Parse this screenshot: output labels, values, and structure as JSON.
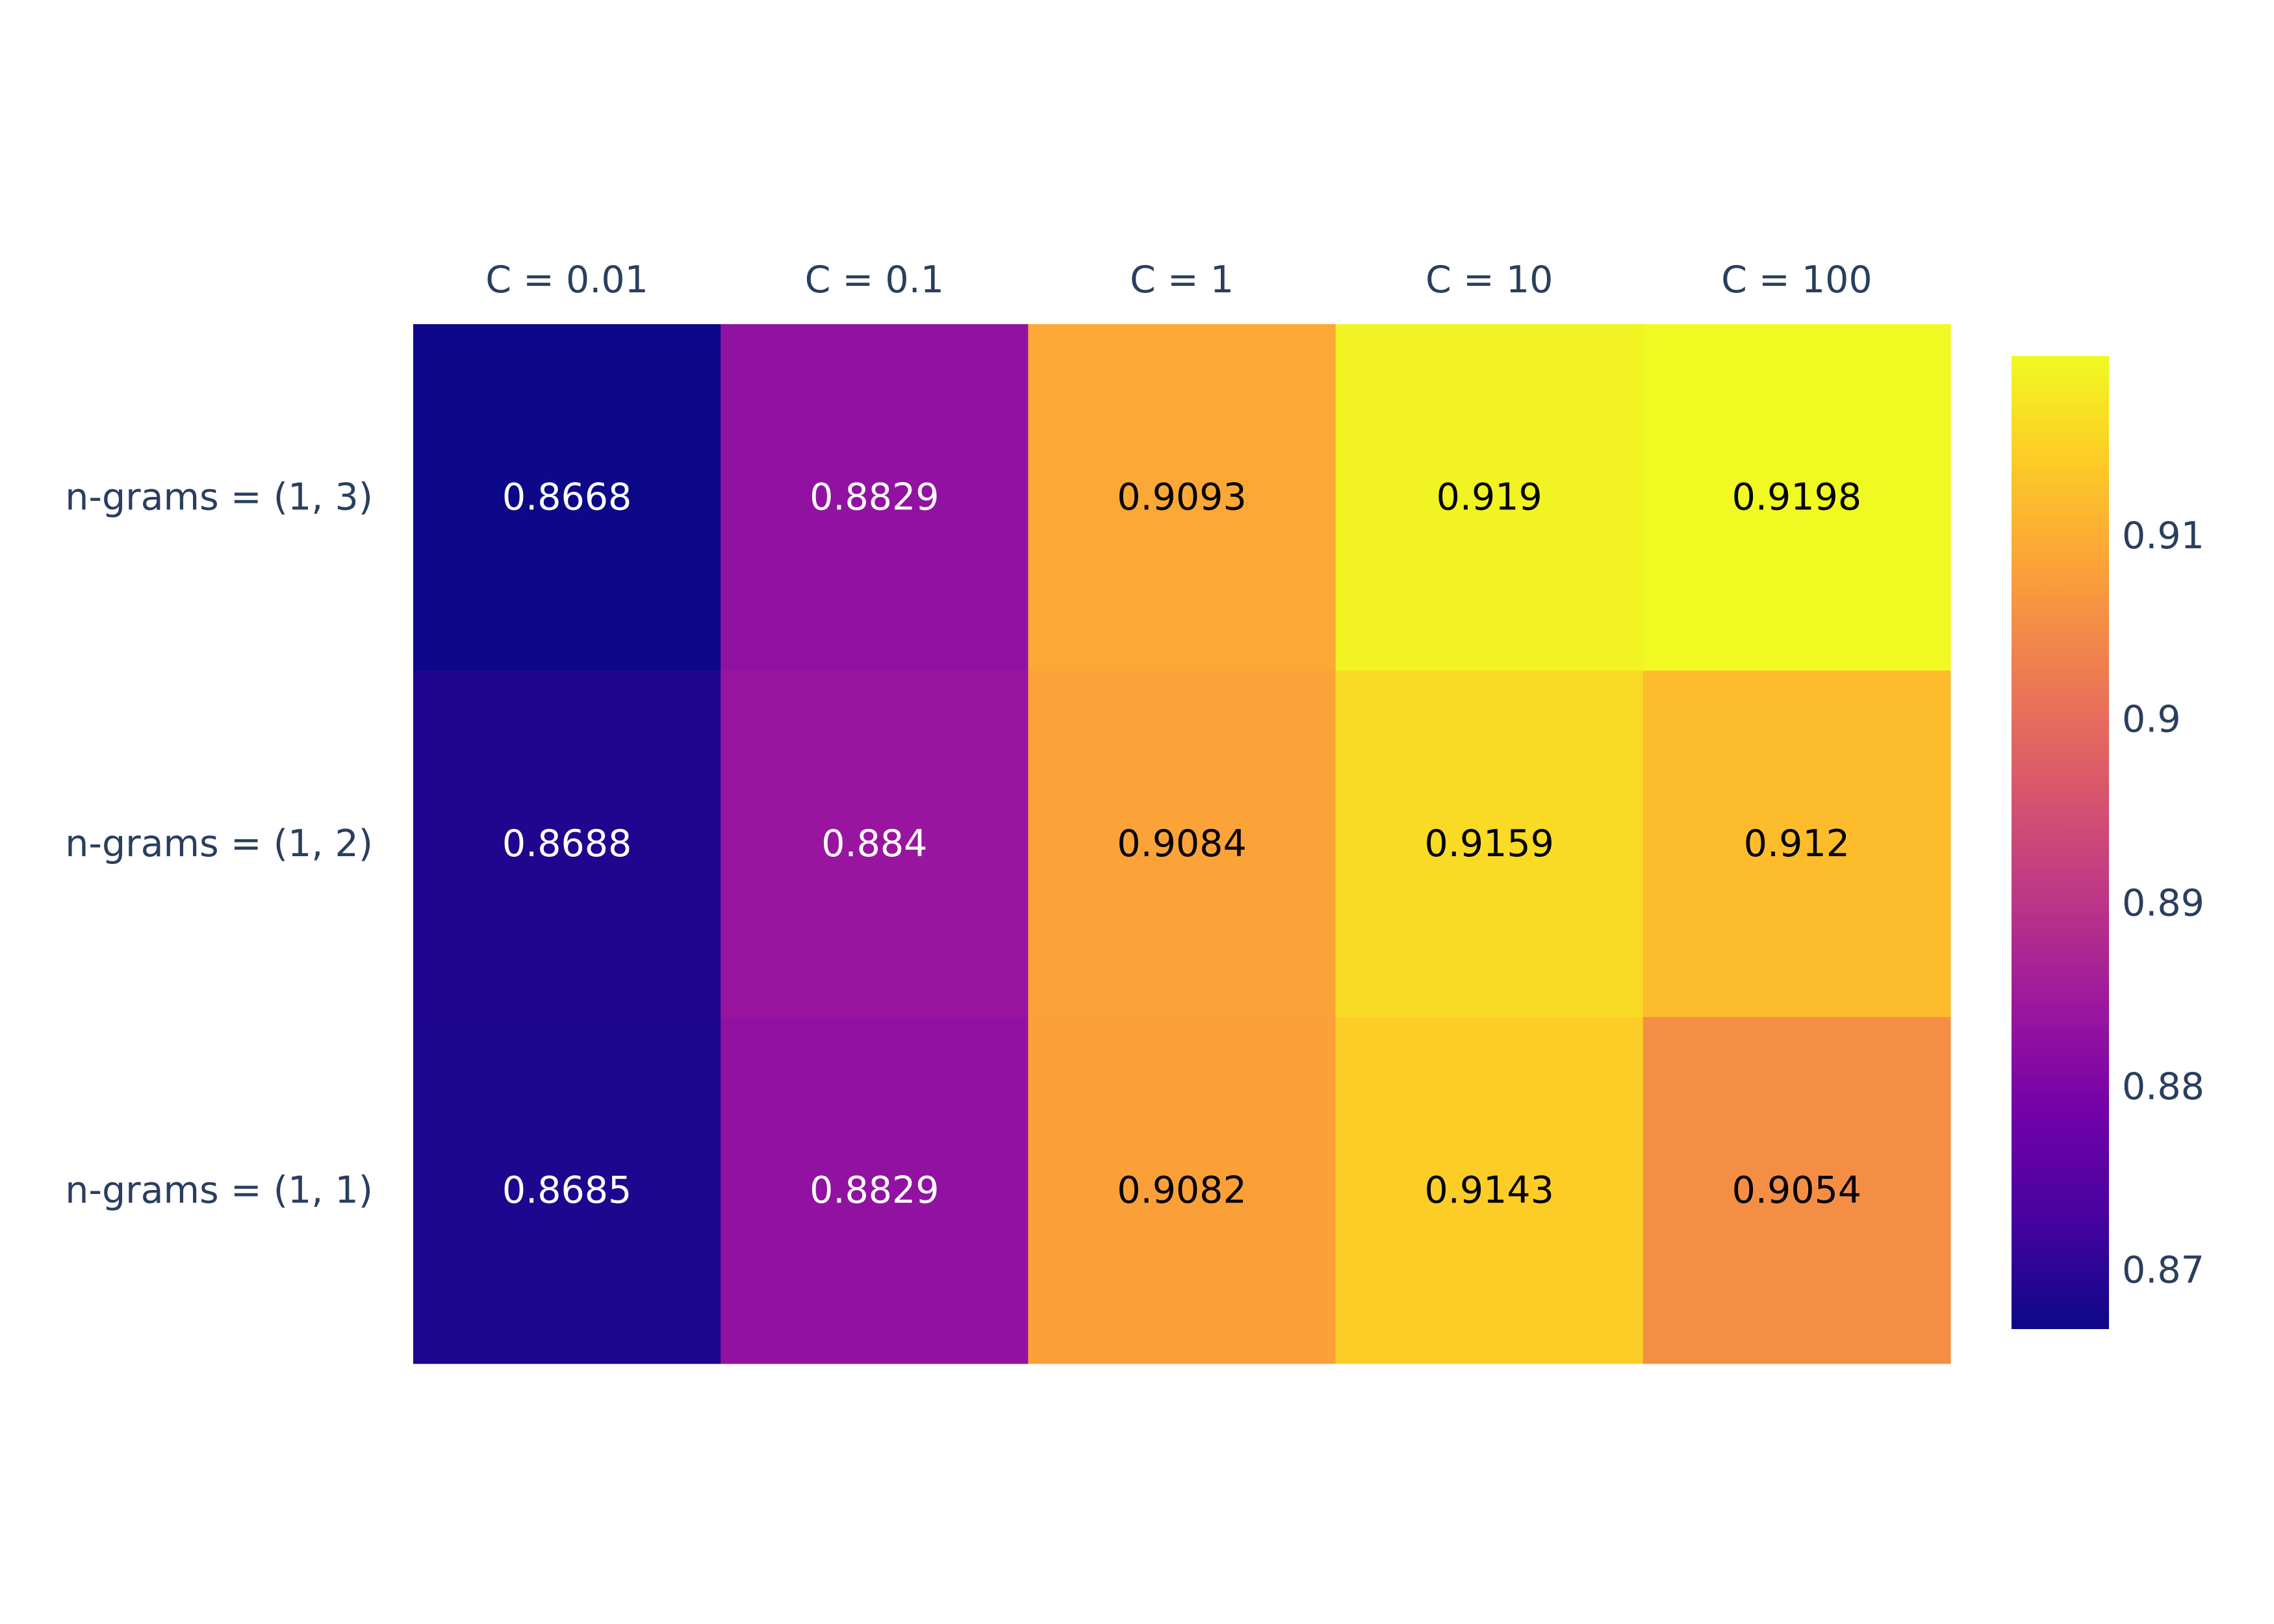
{
  "chart_data": {
    "type": "heatmap",
    "title": "",
    "xlabel": "",
    "ylabel": "",
    "x_categories": [
      "C = 0.01",
      "C = 0.1",
      "C = 1",
      "C = 10",
      "C = 100"
    ],
    "y_categories": [
      "n-grams = (1, 3)",
      "n-grams = (1, 2)",
      "n-grams = (1, 1)"
    ],
    "values": [
      [
        0.8668,
        0.8829,
        0.9093,
        0.919,
        0.9198
      ],
      [
        0.8688,
        0.884,
        0.9084,
        0.9159,
        0.912
      ],
      [
        0.8685,
        0.8829,
        0.9082,
        0.9143,
        0.9054
      ]
    ],
    "cell_labels": [
      [
        "0.8668",
        "0.8829",
        "0.9093",
        "0.919",
        "0.9198"
      ],
      [
        "0.8688",
        "0.884",
        "0.9084",
        "0.9159",
        "0.912"
      ],
      [
        "0.8685",
        "0.8829",
        "0.9082",
        "0.9143",
        "0.9054"
      ]
    ],
    "x_axis_position": "top",
    "colorscale": "plasma",
    "colorbar": {
      "range": [
        0.8668,
        0.9198
      ],
      "tick_values": [
        0.87,
        0.88,
        0.89,
        0.9,
        0.91
      ],
      "tick_labels": [
        "0.87",
        "0.88",
        "0.89",
        "0.9",
        "0.91"
      ],
      "position": "right"
    },
    "grid": false,
    "legend": "none",
    "colors": {
      "axis_text": "#2a3f5f",
      "light_text": "#ffffff",
      "dark_text": "#000000",
      "plasma_stops": [
        "#0d0887",
        "#46039f",
        "#7201a8",
        "#9c179e",
        "#bd3786",
        "#d8576b",
        "#ed7953",
        "#fb9f3a",
        "#fdca26",
        "#f0f921"
      ]
    }
  }
}
